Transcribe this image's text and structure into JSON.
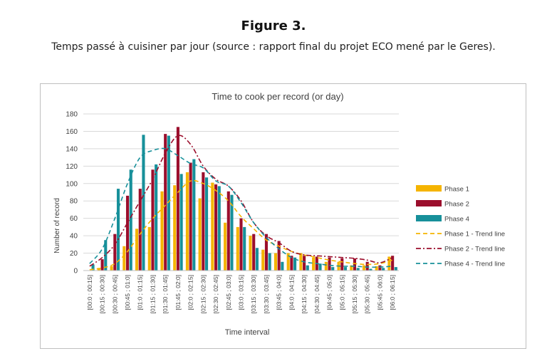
{
  "figure": {
    "label": "Figure 3.",
    "caption": "Temps passé à cuisiner par jour (source : rapport final du projet ECO mené par le Geres)."
  },
  "chart_data": {
    "type": "bar",
    "title": "Time to cook per record (or day)",
    "xlabel": "Time interval",
    "ylabel": "Number of record",
    "ylim": [
      0,
      180
    ],
    "yticks": [
      0,
      20,
      40,
      60,
      80,
      100,
      120,
      140,
      160,
      180
    ],
    "grid": true,
    "legend_position": "right",
    "categories": [
      "[00:0 ; 00:15]",
      "[00:15 ; 00:30]",
      "[00:30 ; 00:45]",
      "[00:45 ; 01:0]",
      "[01:0 ; 01:15]",
      "[01:15 ; 01:30]",
      "[01:30 ; 01:45]",
      "[01:45 ; 02:0]",
      "[02:0 ; 02:15]",
      "[02:15 ; 02:30]",
      "[02:30 ; 02:45]",
      "[02:45 ; 03:0]",
      "[03:0 ; 03:15]",
      "[03:15 ; 03:30]",
      "[03:30 ; 03:45]",
      "[03:45 ; 04:0]",
      "[04:0 ; 04:15]",
      "[04:15 ; 04:30]",
      "[04:30 ; 04:45]",
      "[04:45 ; 05:0]",
      "[05:0 ; 05:15]",
      "[05:15 ; 05:30]",
      "[05:30 ; 05:45]",
      "[05:45 ; 06:0]",
      "[06:0 ; 06:15]"
    ],
    "series": [
      {
        "name": "Phase 1",
        "kind": "bar",
        "color": "#f5b400",
        "values": [
          0,
          3,
          5,
          28,
          48,
          50,
          91,
          98,
          113,
          83,
          101,
          55,
          50,
          40,
          24,
          20,
          20,
          20,
          15,
          10,
          10,
          6,
          6,
          5,
          16
        ]
      },
      {
        "name": "Phase 2",
        "kind": "bar",
        "color": "#9b0e2c",
        "values": [
          0,
          13,
          42,
          86,
          94,
          116,
          157,
          165,
          124,
          113,
          99,
          91,
          60,
          42,
          42,
          34,
          17,
          17,
          16,
          15,
          14,
          14,
          10,
          6,
          17
        ]
      },
      {
        "name": "Phase 4",
        "kind": "bar",
        "color": "#17909a",
        "values": [
          7,
          35,
          94,
          116,
          156,
          122,
          155,
          111,
          128,
          107,
          97,
          87,
          50,
          26,
          20,
          10,
          15,
          6,
          8,
          4,
          4,
          3,
          2,
          3,
          4
        ]
      },
      {
        "name": "Phase 1 - Trend line",
        "kind": "line",
        "dash": "dash",
        "color": "#f5b400",
        "values": [
          1,
          3,
          8,
          22,
          42,
          60,
          75,
          90,
          103,
          100,
          92,
          80,
          62,
          48,
          35,
          28,
          22,
          18,
          15,
          12,
          10,
          8,
          7,
          8,
          12
        ]
      },
      {
        "name": "Phase 2 - Trend line",
        "kind": "line",
        "dash": "dashdot",
        "color": "#9b0e2c",
        "values": [
          5,
          15,
          30,
          55,
          80,
          105,
          135,
          155,
          145,
          120,
          105,
          97,
          80,
          55,
          40,
          32,
          22,
          18,
          17,
          16,
          15,
          14,
          12,
          9,
          15
        ]
      },
      {
        "name": "Phase 4 - Trend line",
        "kind": "line",
        "dash": "dash",
        "color": "#17909a",
        "values": [
          8,
          25,
          60,
          100,
          130,
          138,
          140,
          132,
          123,
          118,
          103,
          97,
          78,
          55,
          38,
          25,
          15,
          10,
          8,
          6,
          5,
          5,
          4,
          4,
          5
        ]
      }
    ]
  }
}
